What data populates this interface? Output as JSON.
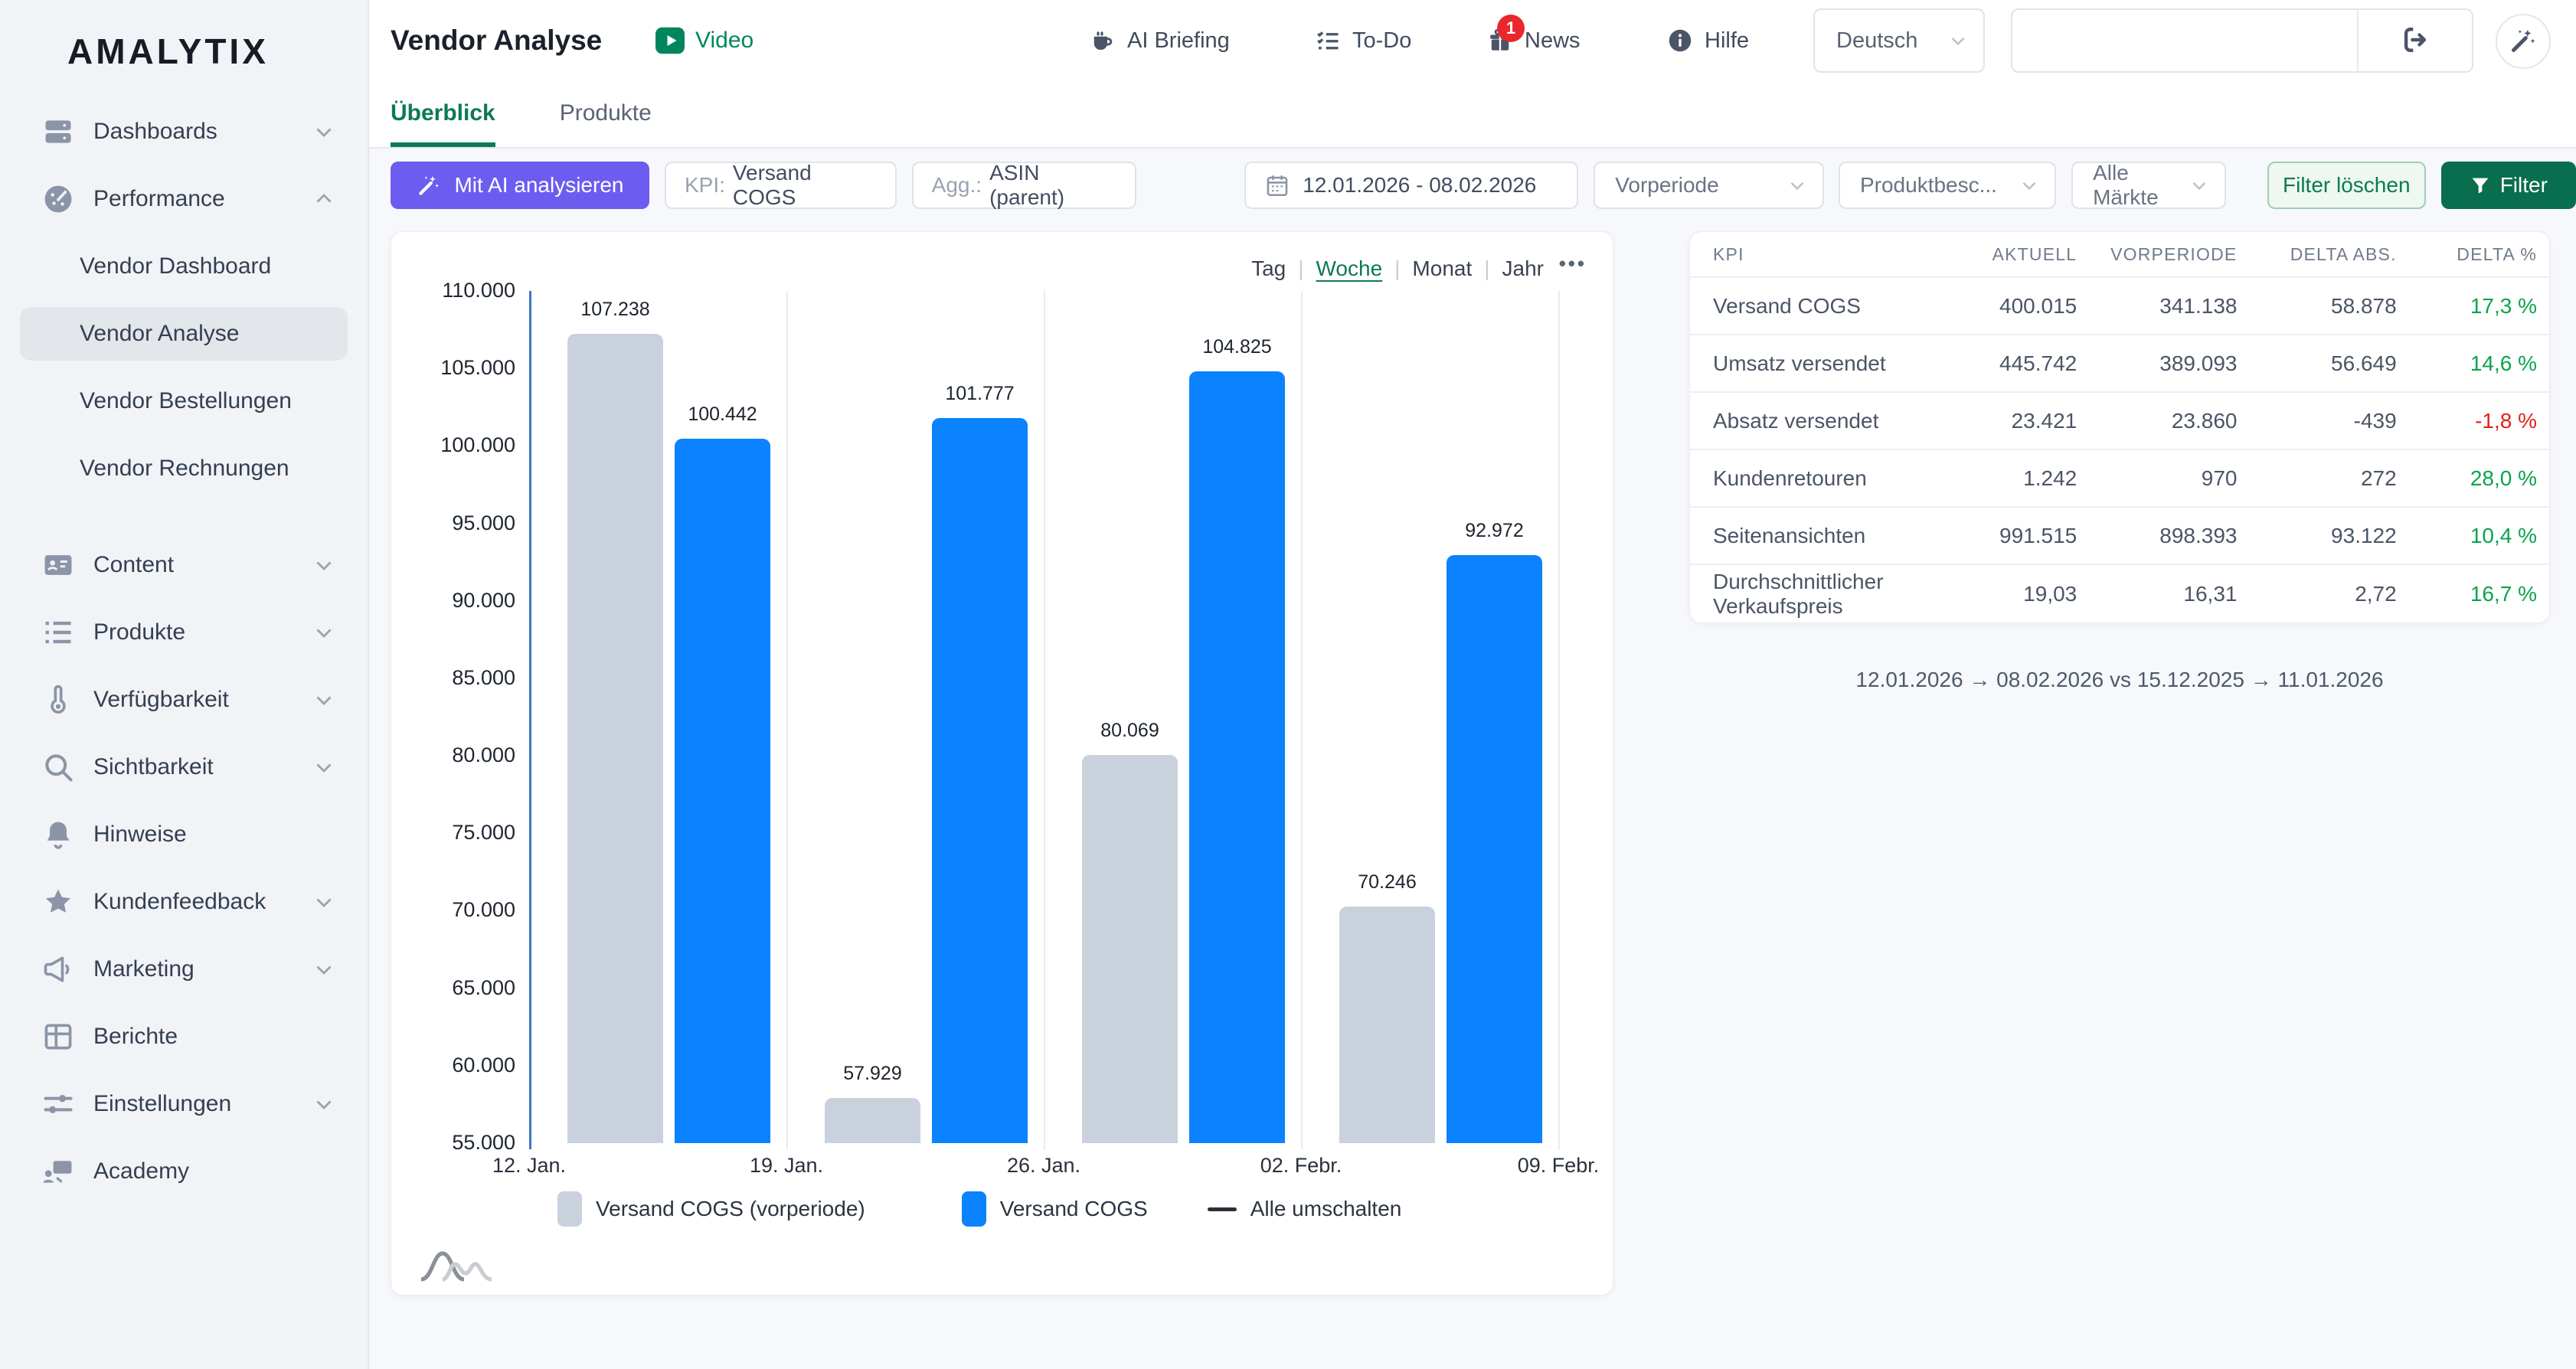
{
  "app": {
    "logo": "AMALYTIX"
  },
  "sidebar": {
    "items": [
      {
        "icon": "dashboards",
        "label": "Dashboards",
        "chevron": "down"
      },
      {
        "icon": "performance",
        "label": "Performance",
        "chevron": "up"
      },
      {
        "sub": true,
        "label": "Vendor Dashboard"
      },
      {
        "sub": true,
        "label": "Vendor Analyse",
        "active": true
      },
      {
        "sub": true,
        "label": "Vendor Bestellungen"
      },
      {
        "sub": true,
        "label": "Vendor Rechnungen",
        "group_end": true
      },
      {
        "icon": "content",
        "label": "Content",
        "chevron": "down"
      },
      {
        "icon": "produkte",
        "label": "Produkte",
        "chevron": "down"
      },
      {
        "icon": "verfuegbarkeit",
        "label": "Verfügbarkeit",
        "chevron": "down"
      },
      {
        "icon": "sichtbarkeit",
        "label": "Sichtbarkeit",
        "chevron": "down"
      },
      {
        "icon": "hinweise",
        "label": "Hinweise"
      },
      {
        "icon": "kundenfeedback",
        "label": "Kundenfeedback",
        "chevron": "down"
      },
      {
        "icon": "marketing",
        "label": "Marketing",
        "chevron": "down"
      },
      {
        "icon": "berichte",
        "label": "Berichte"
      },
      {
        "icon": "einstellungen",
        "label": "Einstellungen",
        "chevron": "down"
      },
      {
        "icon": "academy",
        "label": "Academy"
      }
    ]
  },
  "topbar": {
    "title": "Vendor Analyse",
    "video_label": "Video",
    "menu": [
      {
        "icon": "ai-briefing",
        "label": "AI Briefing"
      },
      {
        "icon": "todo",
        "label": "To-Do"
      },
      {
        "icon": "news",
        "label": "News",
        "badge": "1"
      },
      {
        "icon": "hilfe",
        "label": "Hilfe"
      }
    ],
    "language": "Deutsch",
    "search": {
      "value": ""
    }
  },
  "tabs": [
    {
      "label": "Überblick",
      "active": true
    },
    {
      "label": "Produkte",
      "active": false
    }
  ],
  "filters": {
    "ai_button": "Mit AI analysieren",
    "chips": [
      {
        "label": "KPI:",
        "value": "Versand COGS"
      },
      {
        "label": "Agg.:",
        "value": "ASIN (parent)"
      }
    ],
    "date_range": "12.01.2026  -  08.02.2026",
    "selects": [
      "Vorperiode",
      "Produktbesc...",
      "Alle Märkte"
    ],
    "clear_button": "Filter löschen",
    "filter_button": "Filter"
  },
  "chart_data": {
    "type": "bar",
    "period_toggle": [
      "Tag",
      "Woche",
      "Monat",
      "Jahr"
    ],
    "period_selected": "Woche",
    "x_boundary_labels": [
      "12. Jan.",
      "19. Jan.",
      "26. Jan.",
      "02. Febr.",
      "09. Febr."
    ],
    "series": [
      {
        "name": "Versand COGS (vorperiode)",
        "color": "#c9d1dd",
        "values": [
          107238,
          57929,
          80069,
          70246
        ]
      },
      {
        "name": "Versand COGS",
        "color": "#0b82fe",
        "values": [
          100442,
          101777,
          104825,
          92972
        ]
      }
    ],
    "legend_extra": "Alle umschalten",
    "ylim": [
      55000,
      110000
    ],
    "ytick_step": 5000,
    "grid": "vertical"
  },
  "kpi_table": {
    "columns": [
      "KPI",
      "AKTUELL",
      "VORPERIODE",
      "DELTA ABS.",
      "DELTA %"
    ],
    "rows": [
      {
        "kpi": "Versand COGS",
        "aktuell": "400.015",
        "vorperiode": "341.138",
        "delta_abs": "58.878",
        "delta_pct": "17,3 %",
        "trend": "up"
      },
      {
        "kpi": "Umsatz versendet",
        "aktuell": "445.742",
        "vorperiode": "389.093",
        "delta_abs": "56.649",
        "delta_pct": "14,6 %",
        "trend": "up"
      },
      {
        "kpi": "Absatz versendet",
        "aktuell": "23.421",
        "vorperiode": "23.860",
        "delta_abs": "-439",
        "delta_pct": "-1,8 %",
        "trend": "down"
      },
      {
        "kpi": "Kundenretouren",
        "aktuell": "1.242",
        "vorperiode": "970",
        "delta_abs": "272",
        "delta_pct": "28,0 %",
        "trend": "up"
      },
      {
        "kpi": "Seitenansichten",
        "aktuell": "991.515",
        "vorperiode": "898.393",
        "delta_abs": "93.122",
        "delta_pct": "10,4 %",
        "trend": "up"
      },
      {
        "kpi": "Durchschnittlicher Verkaufspreis",
        "aktuell": "19,03",
        "vorperiode": "16,31",
        "delta_abs": "2,72",
        "delta_pct": "16,7 %",
        "trend": "up"
      }
    ],
    "comparison_note": "12.01.2026 → 08.02.2026 vs 15.12.2025 → 11.01.2026"
  }
}
